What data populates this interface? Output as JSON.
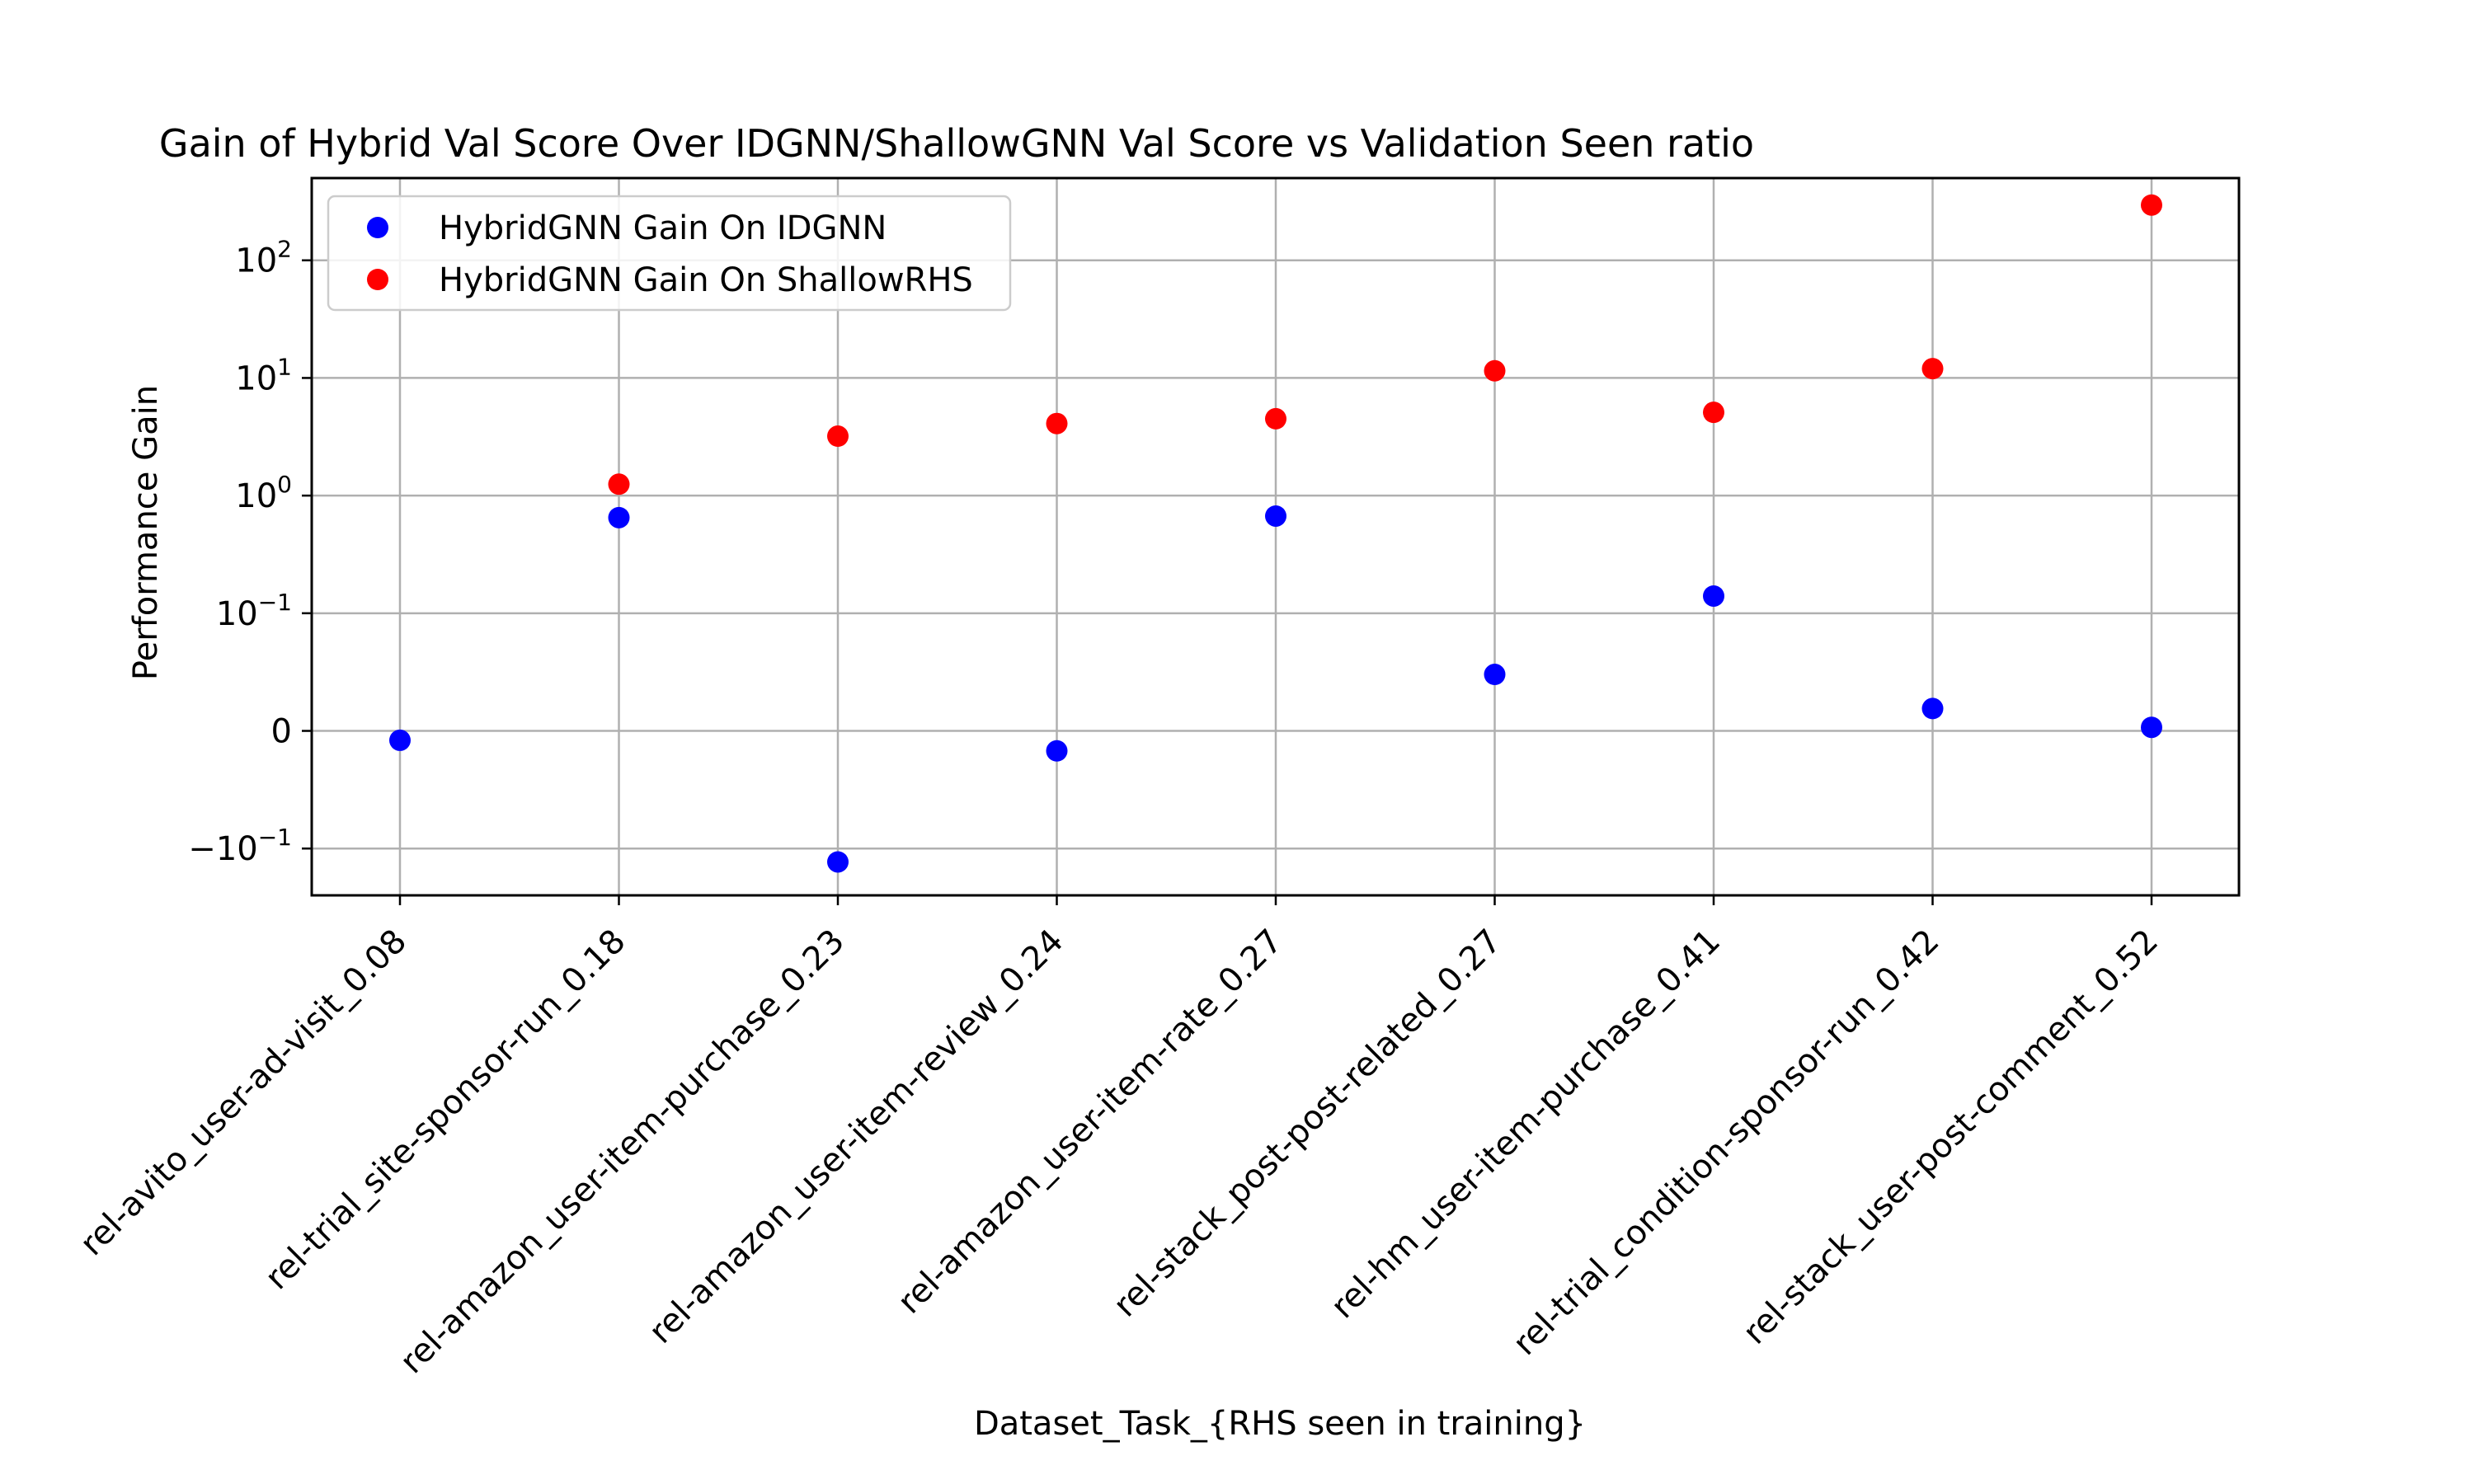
{
  "chart_data": {
    "type": "scatter",
    "title": "Gain of Hybrid Val Score Over IDGNN/ShallowGNN Val Score vs Validation Seen ratio",
    "xlabel": "Dataset_Task_{RHS seen in training}",
    "ylabel": "Performance Gain",
    "yscale": "symlog",
    "ylim": [
      -0.25,
      500
    ],
    "yticks": [
      {
        "value": -0.1,
        "base": "−10",
        "exp": "−1"
      },
      {
        "value": 0,
        "base": "0",
        "exp": ""
      },
      {
        "value": 0.1,
        "base": "10",
        "exp": "−1"
      },
      {
        "value": 1,
        "base": "10",
        "exp": "0"
      },
      {
        "value": 10,
        "base": "10",
        "exp": "1"
      },
      {
        "value": 100,
        "base": "10",
        "exp": "2"
      }
    ],
    "grid": true,
    "legend_position": "top-left",
    "categories": [
      "rel-avito_user-ad-visit_0.08",
      "rel-trial_site-sponsor-run_0.18",
      "rel-amazon_user-item-purchase_0.23",
      "rel-amazon_user-item-review_0.24",
      "rel-amazon_user-item-rate_0.27",
      "rel-stack_post-post-related_0.27",
      "rel-hm_user-item-purchase_0.41",
      "rel-trial_condition-sponsor-run_0.42",
      "rel-stack_user-post-comment_0.52"
    ],
    "series": [
      {
        "name": "HybridGNN Gain On IDGNN",
        "color": "#0000ff",
        "values": [
          -0.008,
          0.65,
          -0.13,
          -0.017,
          0.67,
          0.048,
          0.14,
          0.019,
          0.003
        ]
      },
      {
        "name": "HybridGNN Gain On ShallowRHS",
        "color": "#ff0000",
        "values": [
          null,
          1.25,
          3.2,
          4.1,
          4.5,
          11.5,
          5.1,
          12.0,
          295
        ]
      }
    ]
  }
}
